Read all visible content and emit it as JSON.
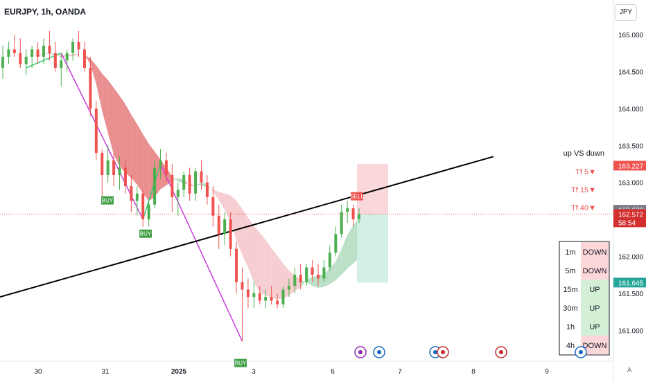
{
  "header": {
    "symbol_label": "EURJPY, 1h, OANDA",
    "currency": "JPY",
    "auto_label": "A"
  },
  "colors": {
    "bull": "#26a69a",
    "bull_bar": "#4caf50",
    "bear": "#ef5350",
    "bear_dark": "#e06070",
    "cloud_red": "#e57373",
    "cloud_pink": "#f4c2c7",
    "cloud_green": "#a5d6b4",
    "trend_line": "#000000",
    "zigzag_green": "#2ecc71",
    "zigzag_purple": "#c83cdc",
    "sell_zone": "#f9d3d7",
    "buy_zone": "#cdeee6"
  },
  "chart_data": {
    "type": "candlestick",
    "title": "EURJPY, 1h, OANDA",
    "ylim": [
      160.6,
      165.3
    ],
    "y_ticks": [
      "165.000",
      "164.500",
      "164.000",
      "163.500",
      "163.000",
      "162.000",
      "161.500",
      "161.000"
    ],
    "x_ticks": [
      "30",
      "31",
      "2025",
      "3",
      "6",
      "7",
      "8",
      "9"
    ],
    "price_badges": [
      {
        "value": "163.227",
        "sublabel": "",
        "color": "#ef5350"
      },
      {
        "value": "162.630",
        "sublabel": "",
        "color": "#787b86"
      },
      {
        "value": "162.572",
        "sublabel": "58:54",
        "color": "#d32f2f"
      },
      {
        "value": "161.645",
        "sublabel": "",
        "color": "#26a69a"
      }
    ],
    "last_price": 162.572,
    "legend": {
      "title": "up VS duwn",
      "rows": [
        {
          "label": "Tf 5▼"
        },
        {
          "label": "Tf 15▼"
        },
        {
          "label": "Tf 40▼"
        }
      ]
    },
    "signals": [
      {
        "label": "BUY",
        "date": "31",
        "price": 162.85
      },
      {
        "label": "BUY",
        "date": "1",
        "price": 162.4
      },
      {
        "label": "BUY",
        "date": "3",
        "price": 160.65
      },
      {
        "label": "SELL",
        "date": "6",
        "price": 162.72
      }
    ],
    "timeframe_table": {
      "rows": [
        {
          "tf": "1m",
          "status": "DOWN"
        },
        {
          "tf": "5m",
          "status": "DOWN"
        },
        {
          "tf": "15m",
          "status": "UP"
        },
        {
          "tf": "30m",
          "status": "UP"
        },
        {
          "tf": "1h",
          "status": "UP"
        },
        {
          "tf": "4h",
          "status": "DOWN"
        }
      ]
    },
    "candles": [
      [
        164.55,
        164.85,
        164.4,
        164.7
      ],
      [
        164.7,
        164.9,
        164.6,
        164.8
      ],
      [
        164.8,
        165.0,
        164.7,
        164.75
      ],
      [
        164.75,
        164.95,
        164.55,
        164.6
      ],
      [
        164.6,
        164.8,
        164.45,
        164.7
      ],
      [
        164.7,
        164.85,
        164.55,
        164.8
      ],
      [
        164.8,
        164.9,
        164.6,
        164.7
      ],
      [
        164.7,
        164.95,
        164.6,
        164.85
      ],
      [
        164.85,
        165.05,
        164.65,
        164.75
      ],
      [
        164.75,
        164.9,
        164.5,
        164.55
      ],
      [
        164.55,
        164.75,
        164.3,
        164.65
      ],
      [
        164.65,
        164.8,
        164.5,
        164.75
      ],
      [
        164.75,
        164.95,
        164.65,
        164.9
      ],
      [
        164.9,
        165.05,
        164.7,
        164.8
      ],
      [
        164.8,
        164.9,
        164.5,
        164.55
      ],
      [
        164.55,
        164.7,
        163.9,
        164.0
      ],
      [
        164.0,
        164.1,
        163.3,
        163.4
      ],
      [
        163.4,
        163.45,
        162.8,
        163.1
      ],
      [
        163.1,
        163.5,
        163.0,
        163.3
      ],
      [
        163.3,
        163.4,
        162.95,
        163.1
      ],
      [
        163.1,
        163.35,
        162.9,
        163.2
      ],
      [
        163.2,
        163.3,
        162.85,
        162.95
      ],
      [
        162.95,
        163.1,
        162.6,
        162.75
      ],
      [
        162.75,
        162.95,
        162.55,
        162.85
      ],
      [
        162.85,
        162.9,
        162.4,
        162.5
      ],
      [
        162.5,
        162.75,
        162.4,
        162.7
      ],
      [
        162.7,
        163.3,
        162.65,
        163.2
      ],
      [
        163.2,
        163.45,
        163.05,
        163.3
      ],
      [
        163.3,
        163.4,
        163.0,
        163.1
      ],
      [
        163.1,
        163.25,
        162.6,
        162.8
      ],
      [
        162.8,
        163.0,
        162.55,
        162.9
      ],
      [
        162.9,
        163.15,
        162.8,
        163.1
      ],
      [
        163.1,
        163.2,
        162.75,
        162.85
      ],
      [
        162.85,
        163.2,
        162.75,
        163.15
      ],
      [
        163.15,
        163.3,
        162.9,
        163.0
      ],
      [
        163.0,
        163.1,
        162.7,
        162.8
      ],
      [
        162.8,
        162.95,
        162.4,
        162.55
      ],
      [
        162.55,
        162.7,
        162.1,
        162.3
      ],
      [
        162.3,
        162.6,
        162.15,
        162.5
      ],
      [
        162.5,
        162.6,
        162.0,
        162.1
      ],
      [
        162.1,
        162.2,
        161.5,
        161.65
      ],
      [
        161.65,
        161.85,
        160.85,
        161.55
      ],
      [
        161.55,
        161.7,
        161.3,
        161.45
      ],
      [
        161.45,
        161.65,
        161.3,
        161.5
      ],
      [
        161.5,
        161.6,
        161.35,
        161.4
      ],
      [
        161.4,
        161.55,
        161.3,
        161.45
      ],
      [
        161.45,
        161.6,
        161.35,
        161.4
      ],
      [
        161.4,
        161.5,
        161.3,
        161.35
      ],
      [
        161.35,
        161.6,
        161.3,
        161.55
      ],
      [
        161.55,
        161.7,
        161.45,
        161.6
      ],
      [
        161.6,
        161.85,
        161.5,
        161.75
      ],
      [
        161.75,
        161.9,
        161.55,
        161.65
      ],
      [
        161.65,
        161.9,
        161.6,
        161.85
      ],
      [
        161.85,
        161.95,
        161.65,
        161.75
      ],
      [
        161.75,
        161.9,
        161.6,
        161.7
      ],
      [
        161.7,
        161.95,
        161.65,
        161.85
      ],
      [
        161.85,
        162.15,
        161.8,
        162.05
      ],
      [
        162.05,
        162.4,
        162.0,
        162.3
      ],
      [
        162.3,
        162.7,
        162.25,
        162.6
      ],
      [
        162.6,
        162.75,
        162.45,
        162.65
      ],
      [
        162.65,
        162.7,
        162.4,
        162.5
      ],
      [
        162.5,
        162.65,
        162.45,
        162.57
      ]
    ]
  }
}
